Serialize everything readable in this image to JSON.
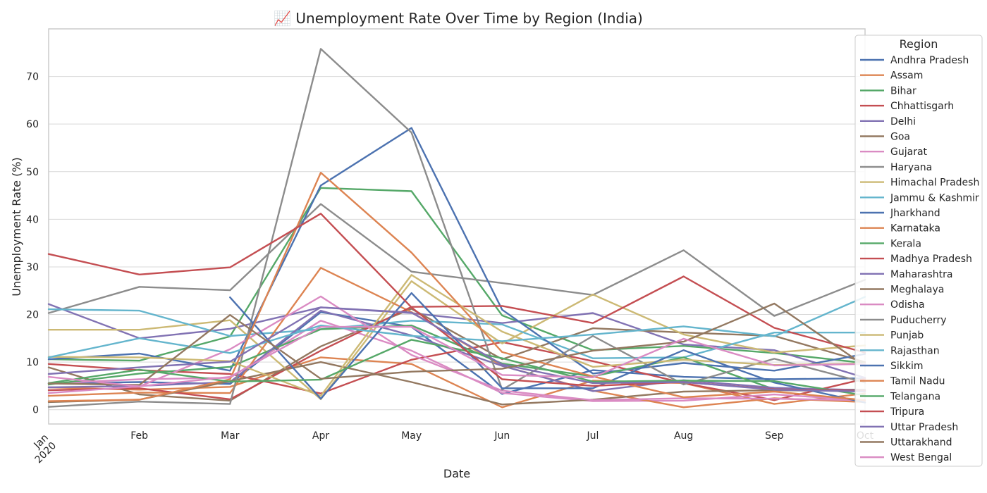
{
  "chart_data": {
    "type": "line",
    "title": "📈 Unemployment Rate Over Time by Region (India)",
    "xlabel": "Date",
    "ylabel": "Unemployment Rate (%)",
    "x": [
      "2020-01",
      "2020-02",
      "2020-03",
      "2020-04",
      "2020-05",
      "2020-06",
      "2020-07",
      "2020-08",
      "2020-09",
      "2020-10"
    ],
    "x_tick_labels": [
      "Jan\n2020",
      "Feb",
      "Mar",
      "Apr",
      "May",
      "Jun",
      "Jul",
      "Aug",
      "Sep",
      "Oct"
    ],
    "ylim": [
      -3,
      80
    ],
    "yticks": [
      0,
      10,
      20,
      30,
      40,
      50,
      60,
      70
    ],
    "grid": true,
    "legend_title": "Region",
    "legend_position": "right",
    "series": [
      {
        "name": "Andhra Pradesh",
        "color": "#4C72B0",
        "values": [
          5.5,
          5.8,
          5.4,
          20.5,
          17.4,
          3.3,
          8.3,
          6.9,
          6.4,
          6.6
        ]
      },
      {
        "name": "Assam",
        "color": "#DD8452",
        "values": [
          4.7,
          4.2,
          4.8,
          11.0,
          9.6,
          0.5,
          6.1,
          5.6,
          1.2,
          3.4
        ]
      },
      {
        "name": "Bihar",
        "color": "#55A868",
        "values": [
          10.6,
          10.3,
          15.4,
          46.6,
          45.9,
          19.8,
          12.5,
          13.4,
          11.9,
          9.8
        ]
      },
      {
        "name": "Chhattisgarh",
        "color": "#C44E52",
        "values": [
          9.6,
          8.3,
          7.5,
          3.4,
          10.5,
          14.2,
          10.2,
          5.6,
          2.0,
          6.5
        ]
      },
      {
        "name": "Delhi",
        "color": "#8172B3",
        "values": [
          22.2,
          15.0,
          17.0,
          21.5,
          20.3,
          18.2,
          20.3,
          13.7,
          12.5,
          6.7
        ]
      },
      {
        "name": "Goa",
        "color": "#937860",
        "values": [
          8.9,
          3.2,
          1.9,
          13.3,
          21.2,
          10.6,
          17.1,
          16.2,
          15.5,
          10.0
        ]
      },
      {
        "name": "Gujarat",
        "color": "#DA8BC3",
        "values": [
          5.5,
          6.4,
          6.7,
          18.7,
          12.4,
          3.5,
          1.8,
          1.9,
          3.2,
          2.0
        ]
      },
      {
        "name": "Haryana",
        "color": "#8C8C8C",
        "values": [
          20.3,
          25.8,
          25.1,
          43.2,
          29.0,
          26.6,
          24.1,
          33.5,
          19.7,
          27.3
        ]
      },
      {
        "name": "Himachal Pradesh",
        "color": "#CCB974",
        "values": [
          16.8,
          16.8,
          18.8,
          2.2,
          27.0,
          13.9,
          24.2,
          15.8,
          12.0,
          13.5
        ]
      },
      {
        "name": "Jammu & Kashmir",
        "color": "#64B5CD",
        "values": [
          21.1,
          20.8,
          15.5,
          16.9,
          18.7,
          17.9,
          10.8,
          11.0,
          16.2,
          16.2
        ]
      },
      {
        "name": "Jharkhand",
        "color": "#4C72B0",
        "values": [
          10.6,
          11.8,
          8.2,
          47.1,
          59.2,
          21.0,
          7.6,
          9.8,
          8.2,
          11.7
        ]
      },
      {
        "name": "Karnataka",
        "color": "#DD8452",
        "values": [
          2.9,
          3.6,
          3.5,
          29.8,
          20.5,
          9.2,
          4.0,
          0.5,
          2.4,
          1.6
        ]
      },
      {
        "name": "Kerala",
        "color": "#55A868",
        "values": [
          5.3,
          7.6,
          9.0,
          16.9,
          17.7,
          9.7,
          7.0,
          11.0,
          4.3,
          4.2
        ]
      },
      {
        "name": "Madhya Pradesh",
        "color": "#C44E52",
        "values": [
          4.1,
          4.5,
          2.2,
          12.4,
          21.6,
          21.8,
          18.2,
          28.0,
          17.2,
          12.0
        ]
      },
      {
        "name": "Maharashtra",
        "color": "#8172B3",
        "values": [
          4.7,
          5.0,
          5.8,
          20.8,
          15.6,
          9.2,
          3.9,
          6.2,
          4.6,
          4.1
        ]
      },
      {
        "name": "Meghalaya",
        "color": "#937860",
        "values": [
          1.6,
          2.1,
          6.0,
          10.0,
          5.8,
          1.1,
          2.1,
          3.8,
          4.1,
          3.9
        ]
      },
      {
        "name": "Odisha",
        "color": "#DA8BC3",
        "values": [
          3.5,
          4.9,
          12.7,
          23.8,
          11.5,
          4.0,
          2.0,
          2.4,
          2.3,
          2.0
        ]
      },
      {
        "name": "Puducherry",
        "color": "#8C8C8C",
        "values": [
          0.6,
          1.7,
          1.2,
          75.8,
          58.2,
          4.2,
          15.5,
          5.3,
          10.7,
          5.7
        ]
      },
      {
        "name": "Punjab",
        "color": "#CCB974",
        "values": [
          11.1,
          11.0,
          10.2,
          2.9,
          28.3,
          16.4,
          9.0,
          10.5,
          9.4,
          9.7
        ]
      },
      {
        "name": "Rajasthan",
        "color": "#64B5CD",
        "values": [
          11.0,
          15.0,
          11.9,
          17.7,
          15.5,
          14.4,
          15.8,
          17.5,
          15.4,
          23.7
        ]
      },
      {
        "name": "Sikkim",
        "color": "#4C72B0",
        "values": [
          null,
          null,
          23.6,
          2.3,
          24.5,
          4.5,
          4.5,
          12.5,
          5.7,
          1.5
        ]
      },
      {
        "name": "Tamil Nadu",
        "color": "#DD8452",
        "values": [
          1.8,
          2.1,
          6.4,
          49.8,
          33.0,
          12.1,
          7.0,
          2.6,
          3.8,
          2.0
        ]
      },
      {
        "name": "Telangana",
        "color": "#55A868",
        "values": [
          5.6,
          8.4,
          5.9,
          6.3,
          14.7,
          10.8,
          5.9,
          6.1,
          6.0,
          3.0
        ]
      },
      {
        "name": "Tripura",
        "color": "#C44E52",
        "values": [
          32.7,
          28.4,
          29.9,
          41.2,
          21.5,
          6.4,
          5.0,
          5.8,
          4.3,
          4.0
        ]
      },
      {
        "name": "Uttar Pradesh",
        "color": "#8172B3",
        "values": [
          7.5,
          8.9,
          10.1,
          21.5,
          20.4,
          9.5,
          5.6,
          5.8,
          4.2,
          3.8
        ]
      },
      {
        "name": "Uttarakhand",
        "color": "#937860",
        "values": [
          5.5,
          5.2,
          19.9,
          6.5,
          8.0,
          8.6,
          12.4,
          14.3,
          22.3,
          9.2
        ]
      },
      {
        "name": "West Bengal",
        "color": "#DA8BC3",
        "values": [
          6.9,
          4.9,
          6.9,
          17.4,
          17.4,
          7.3,
          6.8,
          14.9,
          9.3,
          9.6
        ]
      }
    ]
  }
}
